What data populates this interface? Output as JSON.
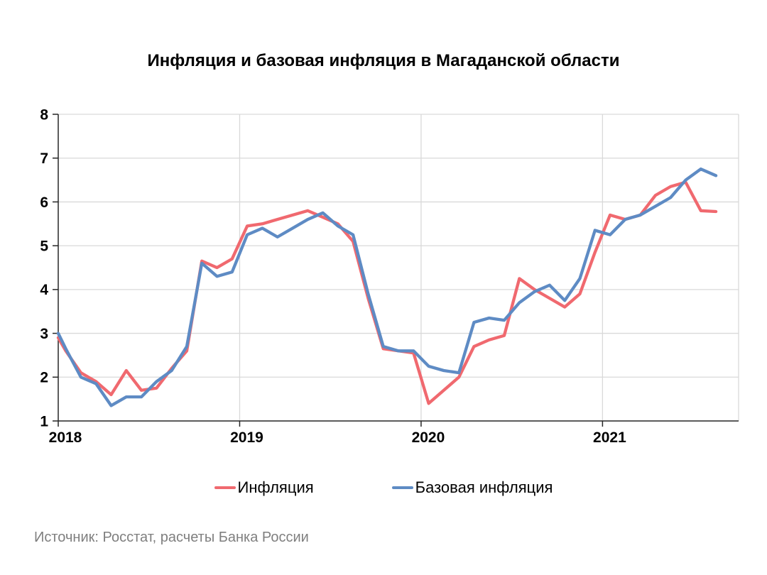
{
  "source_note": "Источник: Росстат, расчеты Банка России",
  "chart_data": {
    "type": "line",
    "title": "Инфляция и базовая инфляция в Магаданской области",
    "ylim": [
      1,
      8
    ],
    "y_ticks": [
      8,
      7,
      6,
      5,
      4,
      3,
      2,
      1
    ],
    "x_ticks": [
      "2018",
      "2019",
      "2020",
      "2021"
    ],
    "grid": true,
    "legend_position": "bottom",
    "axis_color": "#262626",
    "grid_color": "#d9d9d9",
    "x_labels": [
      "2017-12",
      "2018-01",
      "2018-02",
      "2018-03",
      "2018-04",
      "2018-05",
      "2018-06",
      "2018-07",
      "2018-08",
      "2018-09",
      "2018-10",
      "2018-11",
      "2018-12",
      "2019-01",
      "2019-02",
      "2019-03",
      "2019-04",
      "2019-05",
      "2019-06",
      "2019-07",
      "2019-08",
      "2019-09",
      "2019-10",
      "2019-11",
      "2019-12",
      "2020-01",
      "2020-02",
      "2020-03",
      "2020-04",
      "2020-05",
      "2020-06",
      "2020-07",
      "2020-08",
      "2020-09",
      "2020-10",
      "2020-11",
      "2020-12",
      "2021-01",
      "2021-02",
      "2021-03",
      "2021-04",
      "2021-05",
      "2021-06",
      "2021-07",
      "2021-08"
    ],
    "series": [
      {
        "name": "Инфляция",
        "color": "#f0696f",
        "values": [
          2.9,
          2.6,
          2.1,
          1.9,
          1.6,
          2.15,
          1.7,
          1.75,
          2.2,
          2.6,
          4.65,
          4.5,
          4.7,
          5.45,
          5.5,
          5.6,
          5.7,
          5.8,
          5.65,
          5.5,
          5.1,
          3.8,
          2.65,
          2.6,
          2.55,
          1.4,
          1.7,
          2.0,
          2.7,
          2.85,
          2.95,
          4.25,
          4.0,
          3.8,
          3.6,
          3.9,
          4.85,
          5.7,
          5.6,
          5.7,
          6.15,
          6.35,
          6.45,
          5.8,
          5.78
        ]
      },
      {
        "name": "Базовая инфляция",
        "color": "#5e8bc4",
        "values": [
          3.0,
          2.65,
          2.0,
          1.85,
          1.35,
          1.55,
          1.55,
          1.9,
          2.15,
          2.7,
          4.6,
          4.3,
          4.4,
          5.25,
          5.4,
          5.2,
          5.4,
          5.6,
          5.75,
          5.45,
          5.25,
          3.9,
          2.7,
          2.6,
          2.6,
          2.25,
          2.15,
          2.1,
          3.25,
          3.35,
          3.3,
          3.7,
          3.95,
          4.1,
          3.75,
          4.25,
          5.35,
          5.25,
          5.6,
          5.7,
          5.9,
          6.1,
          6.5,
          6.75,
          6.6
        ]
      }
    ]
  }
}
